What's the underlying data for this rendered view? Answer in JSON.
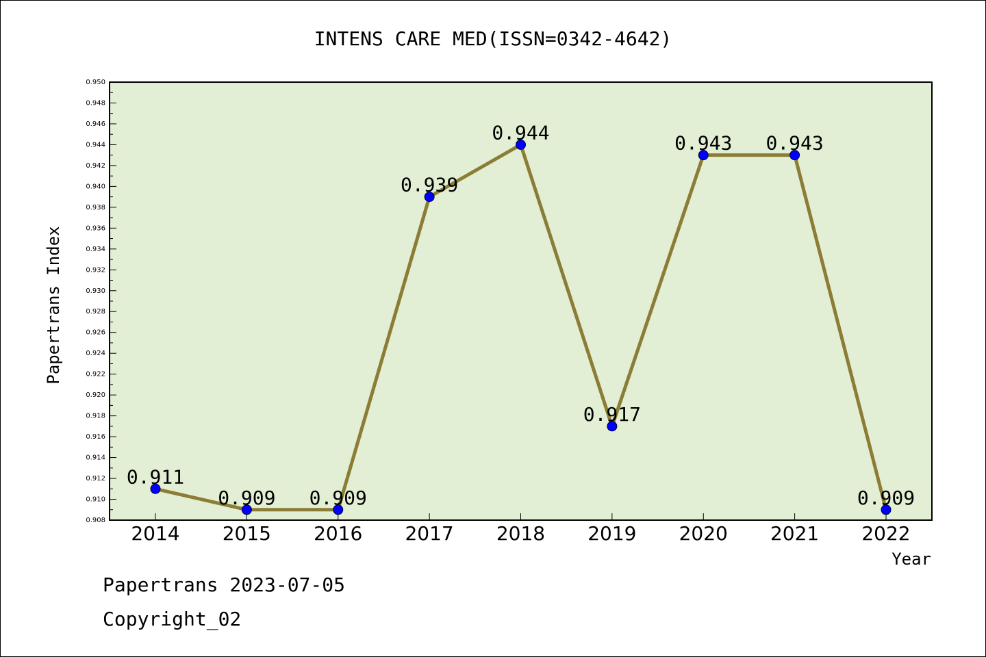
{
  "chart_data": {
    "type": "line",
    "title": "INTENS CARE MED(ISSN=0342-4642)",
    "xlabel": "Year",
    "ylabel": "Papertrans Index",
    "categories": [
      "2014",
      "2015",
      "2016",
      "2017",
      "2018",
      "2019",
      "2020",
      "2021",
      "2022"
    ],
    "series": [
      {
        "values": [
          0.911,
          0.909,
          0.909,
          0.939,
          0.944,
          0.917,
          0.943,
          0.943,
          0.909
        ]
      }
    ],
    "data_labels": [
      "0.911",
      "0.909",
      "0.909",
      "0.939",
      "0.944",
      "0.917",
      "0.943",
      "0.943",
      "0.909"
    ],
    "ylim": [
      0.908,
      0.95
    ],
    "ytick_step": 0.002,
    "yticks": [
      "0.908",
      "0.910",
      "0.912",
      "0.914",
      "0.916",
      "0.918",
      "0.920",
      "0.922",
      "0.924",
      "0.926",
      "0.928",
      "0.930",
      "0.932",
      "0.934",
      "0.936",
      "0.938",
      "0.940",
      "0.942",
      "0.944",
      "0.946",
      "0.948",
      "0.950"
    ],
    "grid": false,
    "legend": "none",
    "colors": {
      "plot_background": "#e2efd4",
      "line": "#8b7d35",
      "marker": "#0000ff"
    }
  },
  "footer": {
    "line1": "Papertrans 2023-07-05",
    "line2": "Copyright_02"
  }
}
